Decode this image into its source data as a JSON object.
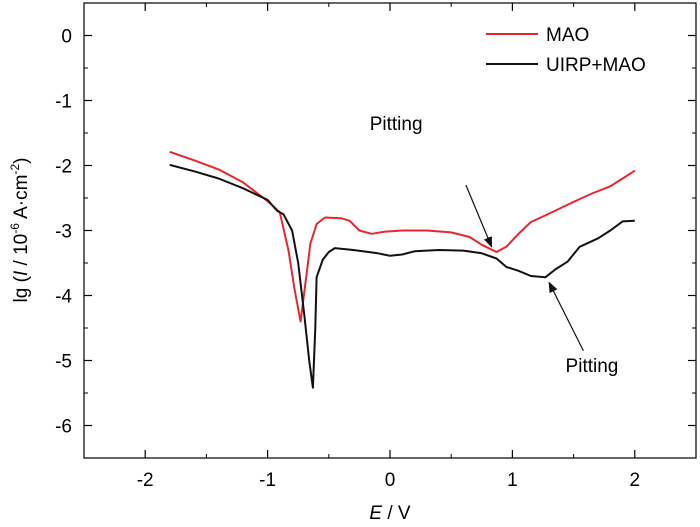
{
  "chart_data": {
    "type": "line",
    "title": "",
    "xlabel_var": "E",
    "xlabel_unit": " / V",
    "ylabel_main": "lg (",
    "ylabel_var": "I",
    "ylabel_mid": " / 10",
    "ylabel_exp1": "-6",
    "ylabel_mid2": " A·cm",
    "ylabel_exp2": "-2",
    "ylabel_end": ")",
    "xlim": [
      -2.5,
      2.5
    ],
    "ylim": [
      -6.5,
      0.5
    ],
    "xticks": [
      -2,
      -1,
      0,
      1,
      2
    ],
    "xtick_labels": [
      "-2",
      "-1",
      "0",
      "1",
      "2"
    ],
    "yticks": [
      0,
      -1,
      -2,
      -3,
      -4,
      -5,
      -6
    ],
    "ytick_labels": [
      "0",
      "-1",
      "-2",
      "-3",
      "-4",
      "-5",
      "-6"
    ],
    "legend_position": "top-right",
    "series": [
      {
        "name": "MAO",
        "color": "#e8262b",
        "points": [
          [
            -1.8,
            -1.79
          ],
          [
            -1.6,
            -1.92
          ],
          [
            -1.4,
            -2.06
          ],
          [
            -1.2,
            -2.26
          ],
          [
            -1.0,
            -2.55
          ],
          [
            -0.9,
            -2.72
          ],
          [
            -0.83,
            -3.3
          ],
          [
            -0.78,
            -3.9
          ],
          [
            -0.73,
            -4.4
          ],
          [
            -0.69,
            -3.8
          ],
          [
            -0.65,
            -3.2
          ],
          [
            -0.6,
            -2.9
          ],
          [
            -0.53,
            -2.8
          ],
          [
            -0.4,
            -2.81
          ],
          [
            -0.33,
            -2.85
          ],
          [
            -0.25,
            -3.0
          ],
          [
            -0.15,
            -3.05
          ],
          [
            -0.05,
            -3.02
          ],
          [
            0.1,
            -3.0
          ],
          [
            0.3,
            -3.0
          ],
          [
            0.5,
            -3.03
          ],
          [
            0.65,
            -3.1
          ],
          [
            0.75,
            -3.22
          ],
          [
            0.87,
            -3.33
          ],
          [
            0.95,
            -3.25
          ],
          [
            1.05,
            -3.05
          ],
          [
            1.15,
            -2.87
          ],
          [
            1.3,
            -2.74
          ],
          [
            1.5,
            -2.56
          ],
          [
            1.65,
            -2.43
          ],
          [
            1.8,
            -2.32
          ],
          [
            1.9,
            -2.2
          ],
          [
            2.0,
            -2.08
          ]
        ]
      },
      {
        "name": "UIRP+MAO",
        "color": "#111111",
        "points": [
          [
            -1.8,
            -1.99
          ],
          [
            -1.6,
            -2.09
          ],
          [
            -1.4,
            -2.2
          ],
          [
            -1.2,
            -2.35
          ],
          [
            -1.0,
            -2.53
          ],
          [
            -0.92,
            -2.7
          ],
          [
            -0.87,
            -2.75
          ],
          [
            -0.8,
            -3.0
          ],
          [
            -0.75,
            -3.5
          ],
          [
            -0.7,
            -4.3
          ],
          [
            -0.66,
            -5.0
          ],
          [
            -0.63,
            -5.42
          ],
          [
            -0.61,
            -4.5
          ],
          [
            -0.6,
            -3.72
          ],
          [
            -0.55,
            -3.45
          ],
          [
            -0.5,
            -3.33
          ],
          [
            -0.45,
            -3.27
          ],
          [
            -0.3,
            -3.3
          ],
          [
            -0.1,
            -3.35
          ],
          [
            0.0,
            -3.39
          ],
          [
            0.1,
            -3.37
          ],
          [
            0.2,
            -3.32
          ],
          [
            0.4,
            -3.3
          ],
          [
            0.6,
            -3.31
          ],
          [
            0.75,
            -3.35
          ],
          [
            0.87,
            -3.43
          ],
          [
            0.95,
            -3.56
          ],
          [
            1.05,
            -3.62
          ],
          [
            1.15,
            -3.7
          ],
          [
            1.27,
            -3.72
          ],
          [
            1.35,
            -3.6
          ],
          [
            1.45,
            -3.48
          ],
          [
            1.55,
            -3.25
          ],
          [
            1.7,
            -3.12
          ],
          [
            1.8,
            -3.0
          ],
          [
            1.9,
            -2.86
          ],
          [
            2.0,
            -2.85
          ]
        ]
      }
    ],
    "annotations": [
      {
        "label": "Pitting",
        "label_at": [
          0.05,
          -1.45
        ],
        "arrow_from": [
          0.62,
          -2.3
        ],
        "arrow_to": [
          0.83,
          -3.25
        ]
      },
      {
        "label": "Pitting",
        "label_at": [
          1.65,
          -5.18
        ],
        "arrow_from": [
          1.58,
          -4.85
        ],
        "arrow_to": [
          1.3,
          -3.8
        ]
      }
    ]
  }
}
